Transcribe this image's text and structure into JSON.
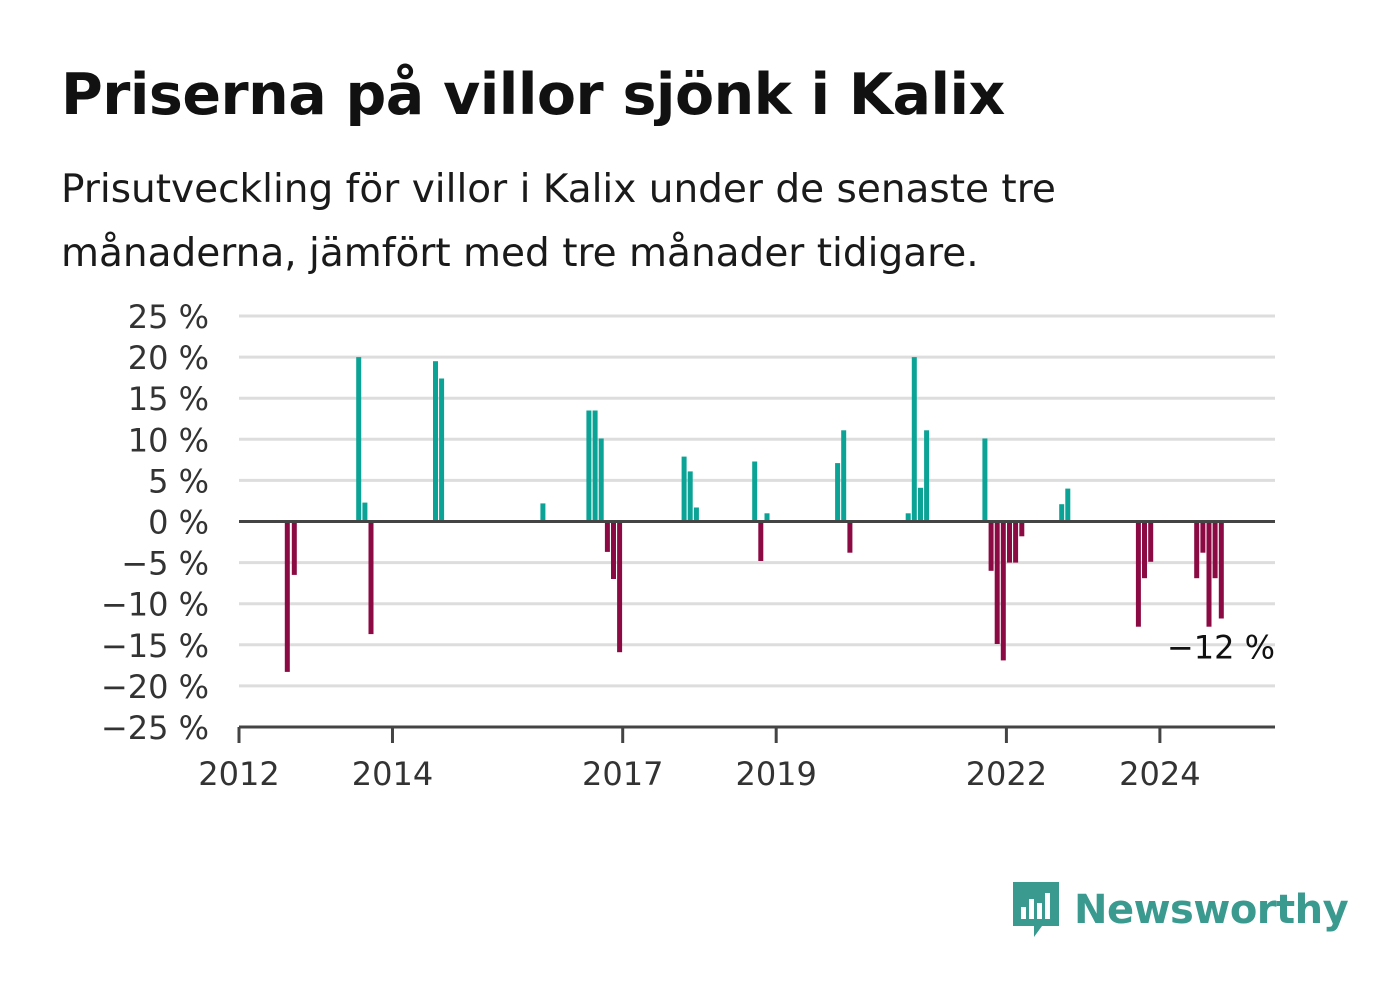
{
  "title": "Priserna på villor sjönk i Kalix",
  "subtitle": "Prisutveckling för villor i Kalix under de senaste tre månaderna, jämfört med tre månader tidigare.",
  "brand": {
    "name": "Newsworthy",
    "color": "#3a9a8f",
    "icon": "bar-chart-speech-bubble-icon"
  },
  "colors": {
    "positive": "#0aa396",
    "negative": "#8c0a44",
    "grid": "#dddddd",
    "axis": "#444444"
  },
  "chart_data": {
    "type": "bar",
    "title": "Priserna på villor sjönk i Kalix",
    "xlabel": "",
    "ylabel": "",
    "x_ticks": [
      2012,
      2014,
      2017,
      2019,
      2022,
      2024
    ],
    "xlim": [
      2012.0,
      2025.5
    ],
    "ylim": [
      -25,
      25
    ],
    "y_ticks": [
      {
        "value": 25,
        "label": "25 %"
      },
      {
        "value": 20,
        "label": "20 %"
      },
      {
        "value": 15,
        "label": "15 %"
      },
      {
        "value": 10,
        "label": "10 %"
      },
      {
        "value": 5,
        "label": "5 %"
      },
      {
        "value": 0,
        "label": "0 %"
      },
      {
        "value": -5,
        "label": "−5 %"
      },
      {
        "value": -10,
        "label": "−10 %"
      },
      {
        "value": -15,
        "label": "−15 %"
      },
      {
        "value": -20,
        "label": "−20 %"
      },
      {
        "value": -25,
        "label": "−25 %"
      }
    ],
    "grid": true,
    "last_value_label": "−12 %",
    "points": [
      {
        "x": 2012.63,
        "y": -18.3
      },
      {
        "x": 2012.72,
        "y": -6.5
      },
      {
        "x": 2013.56,
        "y": 20.0
      },
      {
        "x": 2013.64,
        "y": 2.3
      },
      {
        "x": 2013.72,
        "y": -13.7
      },
      {
        "x": 2014.56,
        "y": 19.5
      },
      {
        "x": 2014.64,
        "y": 17.4
      },
      {
        "x": 2015.96,
        "y": 2.2
      },
      {
        "x": 2016.56,
        "y": 13.5
      },
      {
        "x": 2016.64,
        "y": 13.5
      },
      {
        "x": 2016.72,
        "y": 10.1
      },
      {
        "x": 2016.8,
        "y": -3.7
      },
      {
        "x": 2016.88,
        "y": -7.0
      },
      {
        "x": 2016.96,
        "y": -15.9
      },
      {
        "x": 2017.8,
        "y": 7.9
      },
      {
        "x": 2017.88,
        "y": 6.1
      },
      {
        "x": 2017.96,
        "y": 1.7
      },
      {
        "x": 2018.72,
        "y": 7.3
      },
      {
        "x": 2018.8,
        "y": -4.8
      },
      {
        "x": 2018.88,
        "y": 1.0
      },
      {
        "x": 2019.8,
        "y": 7.1
      },
      {
        "x": 2019.88,
        "y": 11.1
      },
      {
        "x": 2019.96,
        "y": -3.8
      },
      {
        "x": 2020.72,
        "y": 1.0
      },
      {
        "x": 2020.8,
        "y": 20.0
      },
      {
        "x": 2020.88,
        "y": 4.1
      },
      {
        "x": 2020.96,
        "y": 11.1
      },
      {
        "x": 2021.72,
        "y": 10.1
      },
      {
        "x": 2021.8,
        "y": -6.0
      },
      {
        "x": 2021.88,
        "y": -14.9
      },
      {
        "x": 2021.96,
        "y": -16.9
      },
      {
        "x": 2022.04,
        "y": -5.0
      },
      {
        "x": 2022.12,
        "y": -5.0
      },
      {
        "x": 2022.2,
        "y": -1.8
      },
      {
        "x": 2022.72,
        "y": 2.1
      },
      {
        "x": 2022.8,
        "y": 4.0
      },
      {
        "x": 2023.72,
        "y": -12.8
      },
      {
        "x": 2023.8,
        "y": -6.9
      },
      {
        "x": 2023.88,
        "y": -4.9
      },
      {
        "x": 2024.48,
        "y": -6.9
      },
      {
        "x": 2024.56,
        "y": -3.8
      },
      {
        "x": 2024.64,
        "y": -12.8
      },
      {
        "x": 2024.72,
        "y": -6.9
      },
      {
        "x": 2024.8,
        "y": -11.8
      }
    ]
  }
}
